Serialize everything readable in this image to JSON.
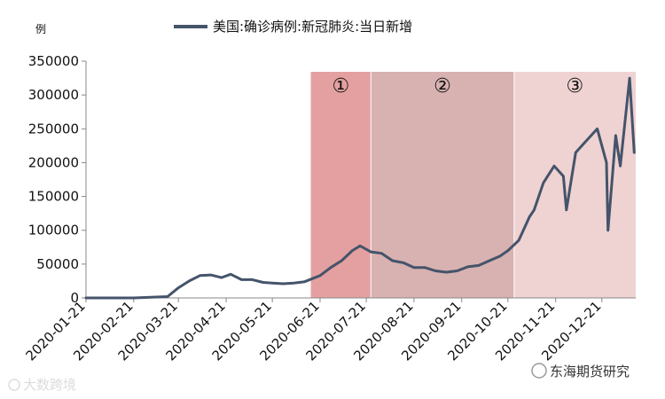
{
  "chart_data": {
    "type": "line",
    "unit": "例",
    "series": [
      {
        "name": "美国:确诊病例:新冠肺炎:当日新增",
        "color": "#44546a",
        "x": [
          "2020-01-21",
          "2020-02-21",
          "2020-03-14",
          "2020-03-21",
          "2020-03-28",
          "2020-04-04",
          "2020-04-11",
          "2020-04-18",
          "2020-04-24",
          "2020-05-01",
          "2020-05-08",
          "2020-05-15",
          "2020-05-21",
          "2020-05-28",
          "2020-06-04",
          "2020-06-11",
          "2020-06-21",
          "2020-06-28",
          "2020-07-05",
          "2020-07-12",
          "2020-07-17",
          "2020-07-24",
          "2020-07-31",
          "2020-08-07",
          "2020-08-14",
          "2020-08-21",
          "2020-08-28",
          "2020-09-04",
          "2020-09-11",
          "2020-09-18",
          "2020-09-25",
          "2020-10-02",
          "2020-10-09",
          "2020-10-16",
          "2020-10-21",
          "2020-10-28",
          "2020-11-04",
          "2020-11-07",
          "2020-11-13",
          "2020-11-20",
          "2020-11-26",
          "2020-11-28",
          "2020-12-04",
          "2020-12-10",
          "2020-12-18",
          "2020-12-24",
          "2020-12-25",
          "2020-12-30",
          "2021-01-02",
          "2021-01-08",
          "2021-01-11"
        ],
        "values": [
          0,
          0,
          2000,
          15000,
          25000,
          33000,
          34000,
          30000,
          35000,
          27000,
          27000,
          23000,
          22000,
          21000,
          22000,
          24000,
          33000,
          45000,
          55000,
          70000,
          77000,
          68000,
          66000,
          55000,
          52000,
          45000,
          45000,
          40000,
          38000,
          40000,
          46000,
          48000,
          55000,
          62000,
          70000,
          85000,
          120000,
          130000,
          170000,
          195000,
          180000,
          130000,
          215000,
          230000,
          250000,
          200000,
          100000,
          240000,
          195000,
          325000,
          215000
        ]
      }
    ],
    "ylim": [
      0,
      350000
    ],
    "yticks": [
      "0",
      "50000",
      "100000",
      "150000",
      "200000",
      "250000",
      "300000",
      "350000"
    ],
    "xticks": [
      "2020-01-21",
      "2020-02-21",
      "2020-03-21",
      "2020-04-21",
      "2020-05-21",
      "2020-06-21",
      "2020-07-21",
      "2020-08-21",
      "2020-09-21",
      "2020-10-21",
      "2020-11-21",
      "2020-12-21"
    ],
    "xrange": [
      "2020-01-21",
      "2021-01-12"
    ],
    "phases": [
      {
        "label": "①",
        "start": "2020-06-15",
        "end": "2020-07-24",
        "color": "#e4a0a0"
      },
      {
        "label": "②",
        "start": "2020-07-24",
        "end": "2020-10-25",
        "color": "#d8b1b1"
      },
      {
        "label": "③",
        "start": "2020-10-25",
        "end": "2021-01-12",
        "color": "#efd2d2"
      }
    ],
    "legend": "top-center",
    "grid": false
  },
  "watermarks": {
    "left": "大数跨境",
    "right": "东海期货研究"
  }
}
